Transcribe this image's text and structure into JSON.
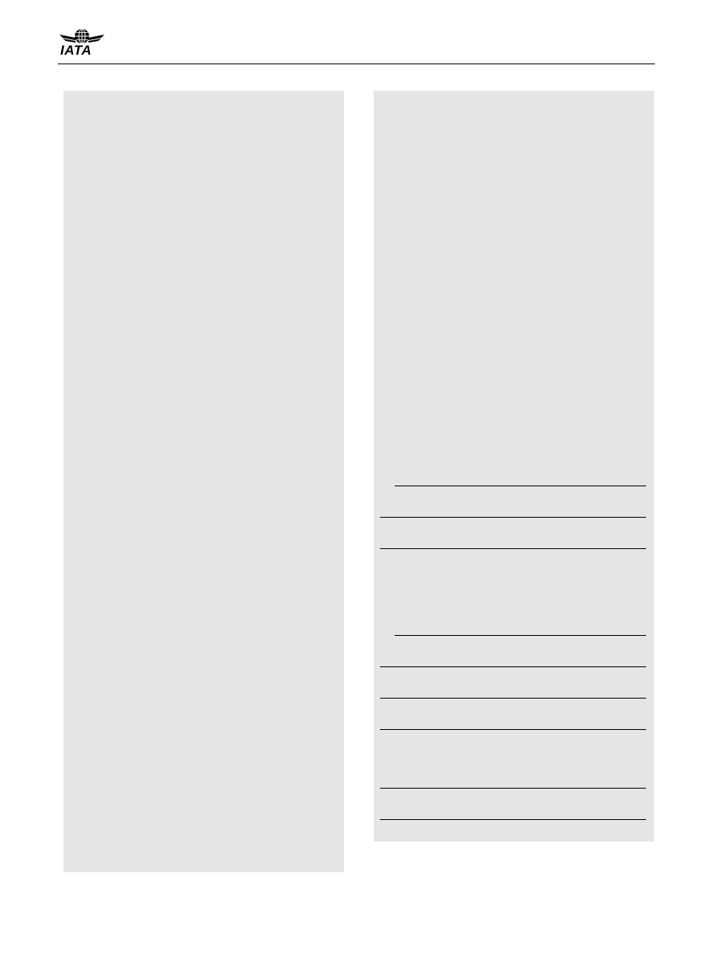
{
  "header": {
    "logo_text": "IATA",
    "logo_icon": "iata-globe-wings-logo"
  },
  "colors": {
    "panel_background": "#e5e5e5",
    "rule": "#000000",
    "page_background": "#ffffff"
  }
}
